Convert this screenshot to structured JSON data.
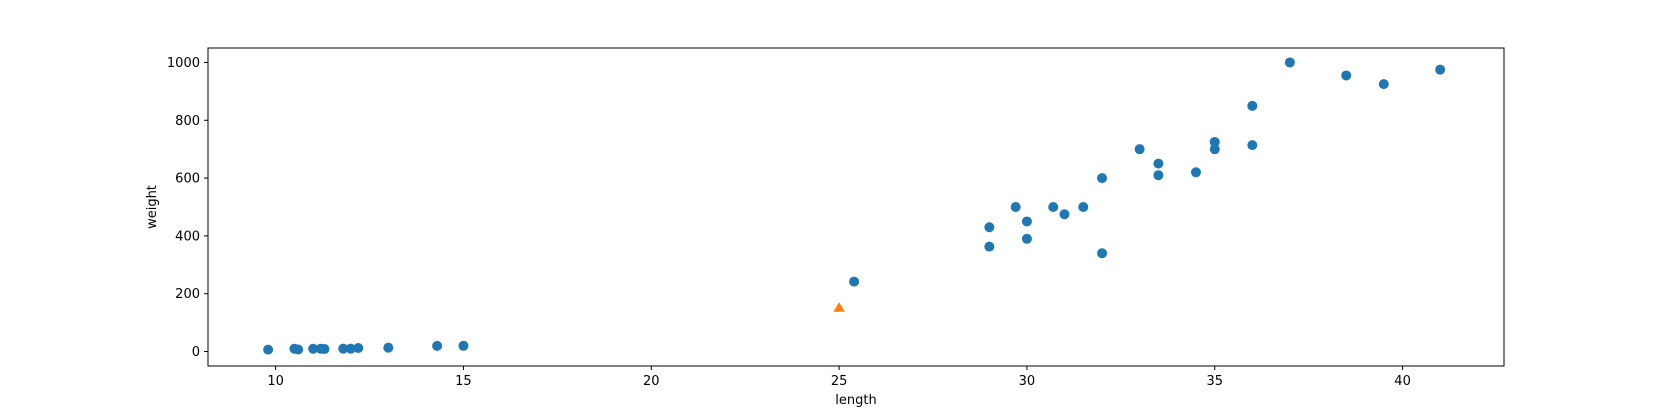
{
  "chart_data": {
    "type": "scatter",
    "title": "",
    "xlabel": "length",
    "ylabel": "weight",
    "xlim": [
      8.2,
      42.7
    ],
    "ylim": [
      -50,
      1050
    ],
    "xticks": [
      10,
      15,
      20,
      25,
      30,
      35,
      40
    ],
    "yticks": [
      0,
      200,
      400,
      600,
      800,
      1000
    ],
    "grid": false,
    "series": [
      {
        "marker": "circle",
        "color": "#1f77b4",
        "points": [
          [
            9.8,
            6.7
          ],
          [
            10.5,
            9.8
          ],
          [
            10.6,
            7.0
          ],
          [
            11.0,
            9.7
          ],
          [
            11.2,
            9.8
          ],
          [
            11.3,
            8.7
          ],
          [
            11.8,
            10.0
          ],
          [
            12.0,
            9.9
          ],
          [
            12.2,
            12.2
          ],
          [
            13.0,
            13.4
          ],
          [
            14.3,
            19.7
          ],
          [
            15.0,
            19.9
          ],
          [
            25.4,
            242
          ],
          [
            29.0,
            430
          ],
          [
            29.0,
            363
          ],
          [
            29.7,
            500
          ],
          [
            30.0,
            450
          ],
          [
            30.0,
            390
          ],
          [
            30.7,
            500
          ],
          [
            31.0,
            475
          ],
          [
            31.5,
            500
          ],
          [
            32.0,
            600
          ],
          [
            32.0,
            340
          ],
          [
            33.0,
            700
          ],
          [
            33.5,
            610
          ],
          [
            33.5,
            650
          ],
          [
            34.5,
            620
          ],
          [
            35.0,
            700
          ],
          [
            35.0,
            725
          ],
          [
            36.0,
            714
          ],
          [
            36.0,
            850
          ],
          [
            37.0,
            1000
          ],
          [
            38.5,
            955
          ],
          [
            39.5,
            925
          ],
          [
            41.0,
            975
          ]
        ]
      },
      {
        "marker": "triangle",
        "color": "#ff7f0e",
        "points": [
          [
            25,
            150
          ]
        ]
      }
    ]
  }
}
